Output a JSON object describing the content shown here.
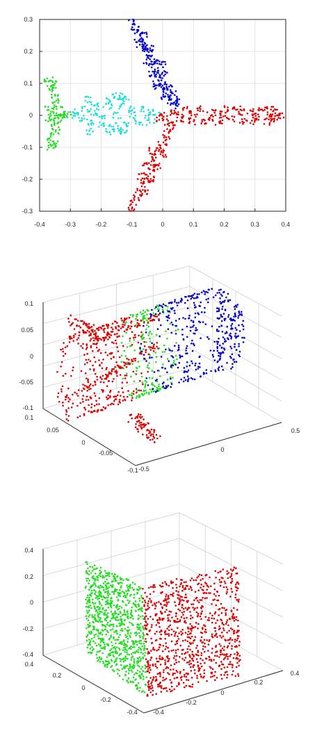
{
  "chart_data": [
    {
      "type": "scatter",
      "xlim": [
        -0.4,
        0.4
      ],
      "ylim": [
        -0.3,
        0.3
      ],
      "x_ticks": [
        "-0.4",
        "-0.3",
        "-0.2",
        "-0.1",
        "0",
        "0.1",
        "0.2",
        "0.3",
        "0.4"
      ],
      "y_ticks": [
        "0.3",
        "0.2",
        "0.1",
        "0",
        "-0.1",
        "-0.2",
        "-0.3"
      ],
      "grid": true,
      "series": [
        {
          "color": "#0000cc",
          "part": "upper wing",
          "points": [
            [
              -0.1,
              0.29
            ],
            [
              -0.09,
              0.27
            ],
            [
              -0.08,
              0.26
            ],
            [
              -0.07,
              0.24
            ],
            [
              -0.06,
              0.22
            ],
            [
              -0.05,
              0.2
            ],
            [
              -0.04,
              0.18
            ],
            [
              -0.03,
              0.16
            ],
            [
              -0.02,
              0.14
            ],
            [
              -0.01,
              0.12
            ],
            [
              0.0,
              0.1
            ],
            [
              0.01,
              0.08
            ],
            [
              0.02,
              0.06
            ],
            [
              0.03,
              0.04
            ],
            [
              0.04,
              0.03
            ],
            [
              -0.06,
              0.25
            ],
            [
              -0.04,
              0.21
            ],
            [
              -0.02,
              0.17
            ],
            [
              0.0,
              0.13
            ],
            [
              0.02,
              0.09
            ],
            [
              -0.07,
              0.21
            ],
            [
              -0.05,
              0.17
            ],
            [
              -0.03,
              0.13
            ],
            [
              -0.01,
              0.09
            ],
            [
              0.01,
              0.06
            ],
            [
              0.03,
              0.07
            ],
            [
              0.0,
              0.16
            ],
            [
              -0.08,
              0.23
            ],
            [
              -0.02,
              0.1
            ],
            [
              0.04,
              0.05
            ]
          ]
        },
        {
          "color": "#dd0000",
          "part": "fuselage front and lower wing",
          "points": [
            [
              0.38,
              0.0
            ],
            [
              0.37,
              0.01
            ],
            [
              0.36,
              -0.01
            ],
            [
              0.35,
              0.02
            ],
            [
              0.34,
              -0.02
            ],
            [
              0.32,
              0.02
            ],
            [
              0.3,
              -0.02
            ],
            [
              0.28,
              0.01
            ],
            [
              0.26,
              -0.02
            ],
            [
              0.24,
              0.02
            ],
            [
              0.22,
              -0.01
            ],
            [
              0.2,
              0.02
            ],
            [
              0.18,
              -0.02
            ],
            [
              0.16,
              0.01
            ],
            [
              0.14,
              -0.02
            ],
            [
              0.12,
              0.02
            ],
            [
              0.1,
              -0.02
            ],
            [
              0.08,
              0.02
            ],
            [
              0.06,
              -0.01
            ],
            [
              0.04,
              0.01
            ],
            [
              0.02,
              -0.02
            ],
            [
              0.0,
              0.0
            ],
            [
              -0.01,
              -0.01
            ],
            [
              0.3,
              0.0
            ],
            [
              0.2,
              0.0
            ],
            [
              0.1,
              0.0
            ],
            [
              0.25,
              0.01
            ],
            [
              0.15,
              -0.01
            ],
            [
              0.05,
              0.0
            ],
            [
              0.35,
              0.0
            ],
            [
              0.03,
              -0.03
            ],
            [
              0.02,
              -0.05
            ],
            [
              0.01,
              -0.07
            ],
            [
              0.0,
              -0.09
            ],
            [
              -0.01,
              -0.11
            ],
            [
              -0.02,
              -0.13
            ],
            [
              -0.03,
              -0.15
            ],
            [
              -0.04,
              -0.17
            ],
            [
              -0.05,
              -0.19
            ],
            [
              -0.06,
              -0.21
            ],
            [
              -0.07,
              -0.23
            ],
            [
              -0.08,
              -0.25
            ],
            [
              -0.09,
              -0.27
            ],
            [
              -0.1,
              -0.29
            ],
            [
              0.0,
              -0.12
            ],
            [
              -0.02,
              -0.16
            ],
            [
              -0.04,
              -0.2
            ],
            [
              -0.06,
              -0.24
            ],
            [
              -0.03,
              -0.11
            ],
            [
              -0.05,
              -0.15
            ],
            [
              -0.07,
              -0.19
            ]
          ]
        },
        {
          "color": "#22dddd",
          "part": "fuselage rear",
          "points": [
            [
              -0.3,
              0.0
            ],
            [
              -0.28,
              0.01
            ],
            [
              -0.26,
              -0.01
            ],
            [
              -0.25,
              0.02
            ],
            [
              -0.24,
              -0.02
            ],
            [
              -0.22,
              0.03
            ],
            [
              -0.2,
              -0.03
            ],
            [
              -0.18,
              0.03
            ],
            [
              -0.16,
              -0.03
            ],
            [
              -0.14,
              0.03
            ],
            [
              -0.12,
              -0.03
            ],
            [
              -0.1,
              0.02
            ],
            [
              -0.08,
              -0.02
            ],
            [
              -0.06,
              0.02
            ],
            [
              -0.04,
              -0.02
            ],
            [
              -0.02,
              0.01
            ],
            [
              -0.2,
              0.0
            ],
            [
              -0.15,
              0.0
            ],
            [
              -0.1,
              0.0
            ],
            [
              -0.05,
              0.0
            ],
            [
              -0.17,
              0.05
            ],
            [
              -0.15,
              0.06
            ],
            [
              -0.13,
              0.06
            ],
            [
              -0.17,
              -0.05
            ],
            [
              -0.15,
              -0.05
            ],
            [
              -0.13,
              -0.05
            ],
            [
              -0.24,
              0.05
            ],
            [
              -0.24,
              -0.05
            ],
            [
              -0.22,
              0.01
            ],
            [
              -0.12,
              0.05
            ]
          ]
        },
        {
          "color": "#22dd22",
          "part": "tail",
          "points": [
            [
              -0.37,
              0.11
            ],
            [
              -0.36,
              0.1
            ],
            [
              -0.36,
              0.08
            ],
            [
              -0.35,
              0.06
            ],
            [
              -0.35,
              0.04
            ],
            [
              -0.34,
              0.02
            ],
            [
              -0.34,
              0.0
            ],
            [
              -0.34,
              -0.02
            ],
            [
              -0.35,
              -0.04
            ],
            [
              -0.35,
              -0.06
            ],
            [
              -0.36,
              -0.08
            ],
            [
              -0.36,
              -0.1
            ],
            [
              -0.33,
              0.0
            ],
            [
              -0.32,
              0.0
            ],
            [
              -0.31,
              0.01
            ],
            [
              -0.36,
              0.0
            ],
            [
              -0.37,
              0.02
            ],
            [
              -0.37,
              -0.02
            ],
            [
              -0.35,
              0.09
            ],
            [
              -0.35,
              -0.09
            ]
          ]
        }
      ]
    },
    {
      "type": "scatter",
      "xlim": [
        -0.5,
        0.5
      ],
      "ylim": [
        -0.1,
        0.1
      ],
      "zlim": [
        -0.1,
        0.1
      ],
      "x_ticks": [
        "-0.5",
        "0",
        "0.5"
      ],
      "y_ticks": [
        "0.1",
        "0.05",
        "0",
        "-0.05",
        "-0.1"
      ],
      "z_ticks": [
        "0.1",
        "0.05",
        "0",
        "-0.05",
        "-0.1"
      ],
      "grid": true,
      "series": [
        {
          "color": "#0000cc",
          "part": "front section"
        },
        {
          "color": "#22dd22",
          "part": "middle section"
        },
        {
          "color": "#dd0000",
          "part": "rear section with wings and tail"
        }
      ]
    },
    {
      "type": "scatter",
      "xlim": [
        -0.4,
        0.4
      ],
      "ylim": [
        -0.4,
        0.4
      ],
      "zlim": [
        -0.4,
        0.4
      ],
      "x_ticks": [
        "-0.4",
        "-0.2",
        "0",
        "0.2",
        "0.4"
      ],
      "y_ticks": [
        "0.4",
        "0.2",
        "0",
        "-0.2",
        "-0.4"
      ],
      "z_ticks": [
        "0.4",
        "0.2",
        "0",
        "-0.2",
        "-0.4"
      ],
      "grid": true,
      "series": [
        {
          "color": "#22dd22",
          "part": "left plane"
        },
        {
          "color": "#dd0000",
          "part": "right plane"
        }
      ]
    }
  ]
}
